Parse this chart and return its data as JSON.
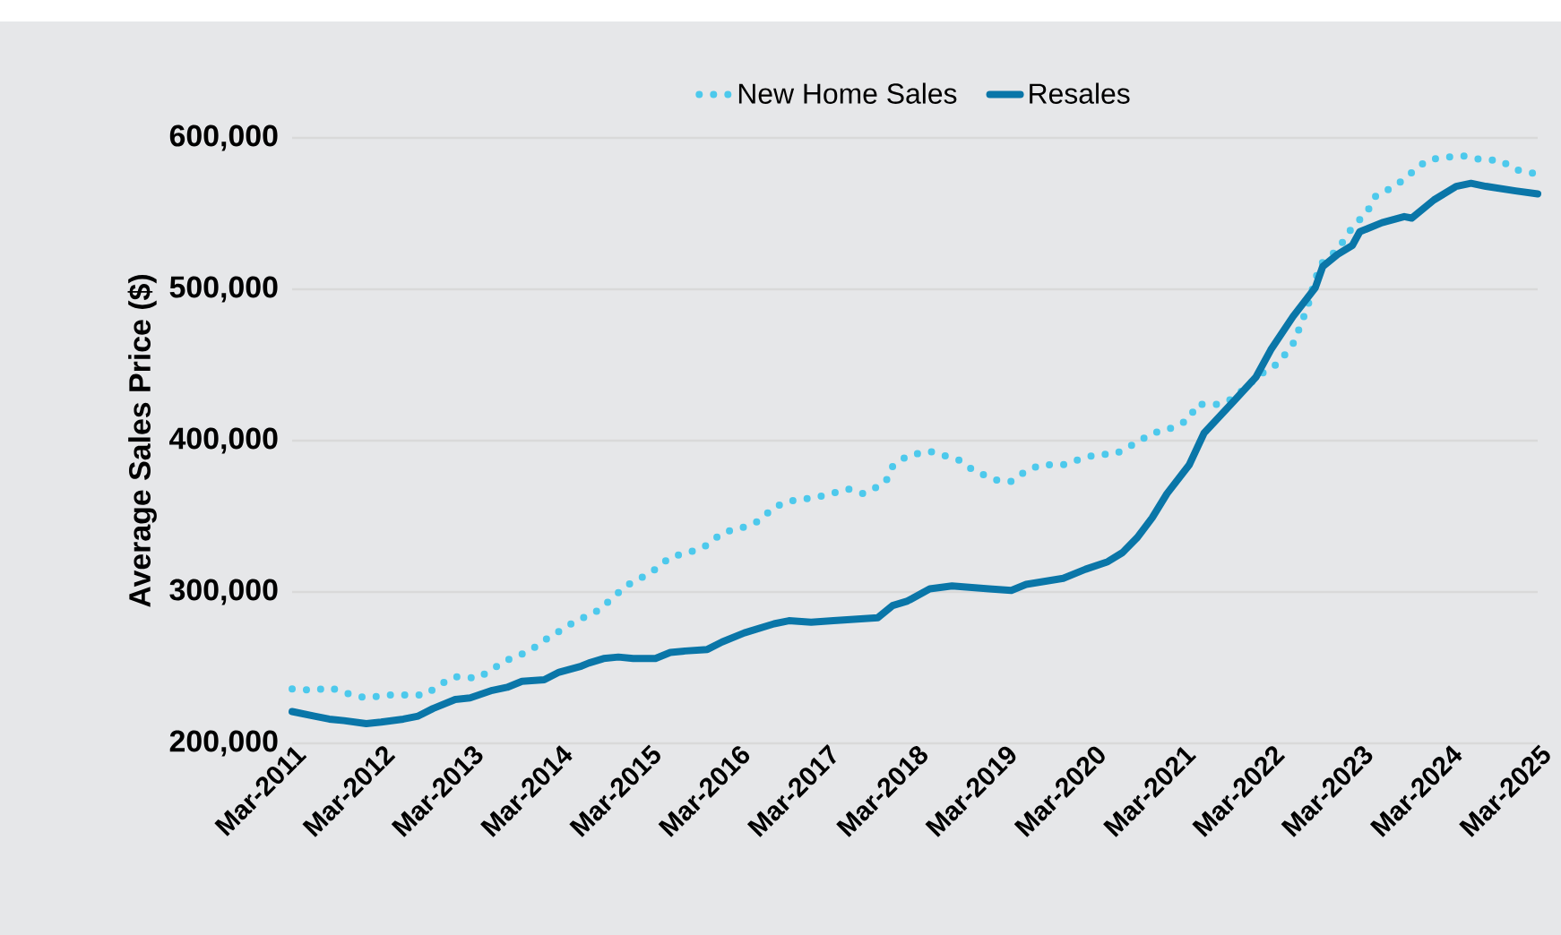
{
  "chart_data": {
    "type": "line",
    "ylabel": "Average Sales Price ($)",
    "grid": "y",
    "legend": "top",
    "xlim": [
      "2011-03",
      "2025-03"
    ],
    "ylim": [
      200000,
      600000
    ],
    "xticks": [
      {
        "value": "2011-03",
        "label": "Mar-2011"
      },
      {
        "value": "2012-03",
        "label": "Mar-2012"
      },
      {
        "value": "2013-03",
        "label": "Mar-2013"
      },
      {
        "value": "2014-03",
        "label": "Mar-2014"
      },
      {
        "value": "2015-03",
        "label": "Mar-2015"
      },
      {
        "value": "2016-03",
        "label": "Mar-2016"
      },
      {
        "value": "2017-03",
        "label": "Mar-2017"
      },
      {
        "value": "2018-03",
        "label": "Mar-2018"
      },
      {
        "value": "2019-03",
        "label": "Mar-2019"
      },
      {
        "value": "2020-03",
        "label": "Mar-2020"
      },
      {
        "value": "2021-03",
        "label": "Mar-2021"
      },
      {
        "value": "2022-03",
        "label": "Mar-2022"
      },
      {
        "value": "2023-03",
        "label": "Mar-2023"
      },
      {
        "value": "2024-03",
        "label": "Mar-2024"
      },
      {
        "value": "2025-03",
        "label": "Mar-2025"
      }
    ],
    "yticks": [
      {
        "value": 200000,
        "label": "200,000"
      },
      {
        "value": 300000,
        "label": "300,000"
      },
      {
        "value": 400000,
        "label": "400,000"
      },
      {
        "value": 500000,
        "label": "500,000"
      },
      {
        "value": 600000,
        "label": "600,000"
      }
    ],
    "series": [
      {
        "name": "New Home Sales",
        "color": "#4dc9ec",
        "line_style": "dotted",
        "x": [
          "2011-03",
          "2011-06",
          "2011-08",
          "2011-11",
          "2012-01",
          "2012-04",
          "2012-06",
          "2012-09",
          "2012-11",
          "2013-01",
          "2013-04",
          "2013-06",
          "2013-08",
          "2013-11",
          "2014-01",
          "2014-03",
          "2014-05",
          "2014-08",
          "2014-10",
          "2014-12",
          "2015-02",
          "2015-04",
          "2015-06",
          "2015-09",
          "2015-11",
          "2016-01",
          "2016-04",
          "2016-06",
          "2016-08",
          "2016-10",
          "2017-01",
          "2017-03",
          "2017-06",
          "2017-08",
          "2017-11",
          "2017-12",
          "2018-02",
          "2018-05",
          "2018-07",
          "2018-09",
          "2018-11",
          "2019-02",
          "2019-04",
          "2019-06",
          "2019-08",
          "2019-11",
          "2020-02",
          "2020-04",
          "2020-06",
          "2020-09",
          "2020-11",
          "2021-01",
          "2021-04",
          "2021-05",
          "2021-08",
          "2021-10",
          "2021-12",
          "2022-02",
          "2022-04",
          "2022-06",
          "2022-07",
          "2022-08",
          "2022-09",
          "2022-10",
          "2022-12",
          "2023-02",
          "2023-04",
          "2023-05",
          "2023-08",
          "2023-10",
          "2023-12",
          "2024-02",
          "2024-05",
          "2024-07",
          "2024-10",
          "2024-12",
          "2025-03"
        ],
        "values": [
          236000,
          235000,
          237000,
          232000,
          230000,
          232000,
          232000,
          232000,
          239000,
          244000,
          243000,
          249000,
          255000,
          261000,
          268000,
          274000,
          280000,
          287000,
          295000,
          304000,
          309000,
          315000,
          323000,
          327000,
          331000,
          339000,
          343000,
          347000,
          356000,
          360000,
          362000,
          364000,
          368000,
          365000,
          372000,
          383000,
          390000,
          393000,
          390000,
          387000,
          380000,
          374000,
          373000,
          380000,
          384000,
          384000,
          389000,
          391000,
          391000,
          399000,
          405000,
          407000,
          414000,
          424000,
          424000,
          428000,
          437000,
          445000,
          451000,
          464000,
          476000,
          489000,
          507000,
          518000,
          526000,
          541000,
          551000,
          561000,
          569000,
          577000,
          585000,
          587000,
          588000,
          586000,
          585000,
          579000,
          576000
        ]
      },
      {
        "name": "Resales",
        "color": "#0a76a8",
        "line_style": "solid",
        "x": [
          "2011-03",
          "2011-06",
          "2011-08",
          "2011-10",
          "2012-01",
          "2012-03",
          "2012-06",
          "2012-08",
          "2012-10",
          "2013-01",
          "2013-03",
          "2013-06",
          "2013-08",
          "2013-10",
          "2014-01",
          "2014-03",
          "2014-06",
          "2014-07",
          "2014-09",
          "2014-11",
          "2015-01",
          "2015-04",
          "2015-06",
          "2015-08",
          "2015-11",
          "2016-01",
          "2016-04",
          "2016-08",
          "2016-10",
          "2017-01",
          "2017-04",
          "2017-07",
          "2017-10",
          "2017-12",
          "2018-02",
          "2018-05",
          "2018-08",
          "2019-01",
          "2019-04",
          "2019-06",
          "2019-11",
          "2020-02",
          "2020-05",
          "2020-07",
          "2020-09",
          "2020-11",
          "2021-01",
          "2021-04",
          "2021-06",
          "2021-10",
          "2022-01",
          "2022-03",
          "2022-06",
          "2022-09",
          "2022-10",
          "2022-12",
          "2023-02",
          "2023-03",
          "2023-06",
          "2023-09",
          "2023-10",
          "2024-01",
          "2024-04",
          "2024-06",
          "2024-08",
          "2024-12",
          "2025-03"
        ],
        "values": [
          221000,
          218000,
          216000,
          215000,
          213000,
          214000,
          216000,
          218000,
          223000,
          229000,
          230000,
          235000,
          237000,
          241000,
          242000,
          247000,
          251000,
          253000,
          256000,
          257000,
          256000,
          256000,
          260000,
          261000,
          262000,
          267000,
          273000,
          279000,
          281000,
          280000,
          281000,
          282000,
          283000,
          291000,
          294000,
          302000,
          304000,
          302000,
          301000,
          305000,
          309000,
          315000,
          320000,
          326000,
          336000,
          349000,
          365000,
          384000,
          405000,
          426000,
          442000,
          460000,
          482000,
          501000,
          515000,
          523000,
          529000,
          538000,
          544000,
          548000,
          547000,
          559000,
          568000,
          570000,
          568000,
          565000,
          563000
        ]
      }
    ]
  }
}
